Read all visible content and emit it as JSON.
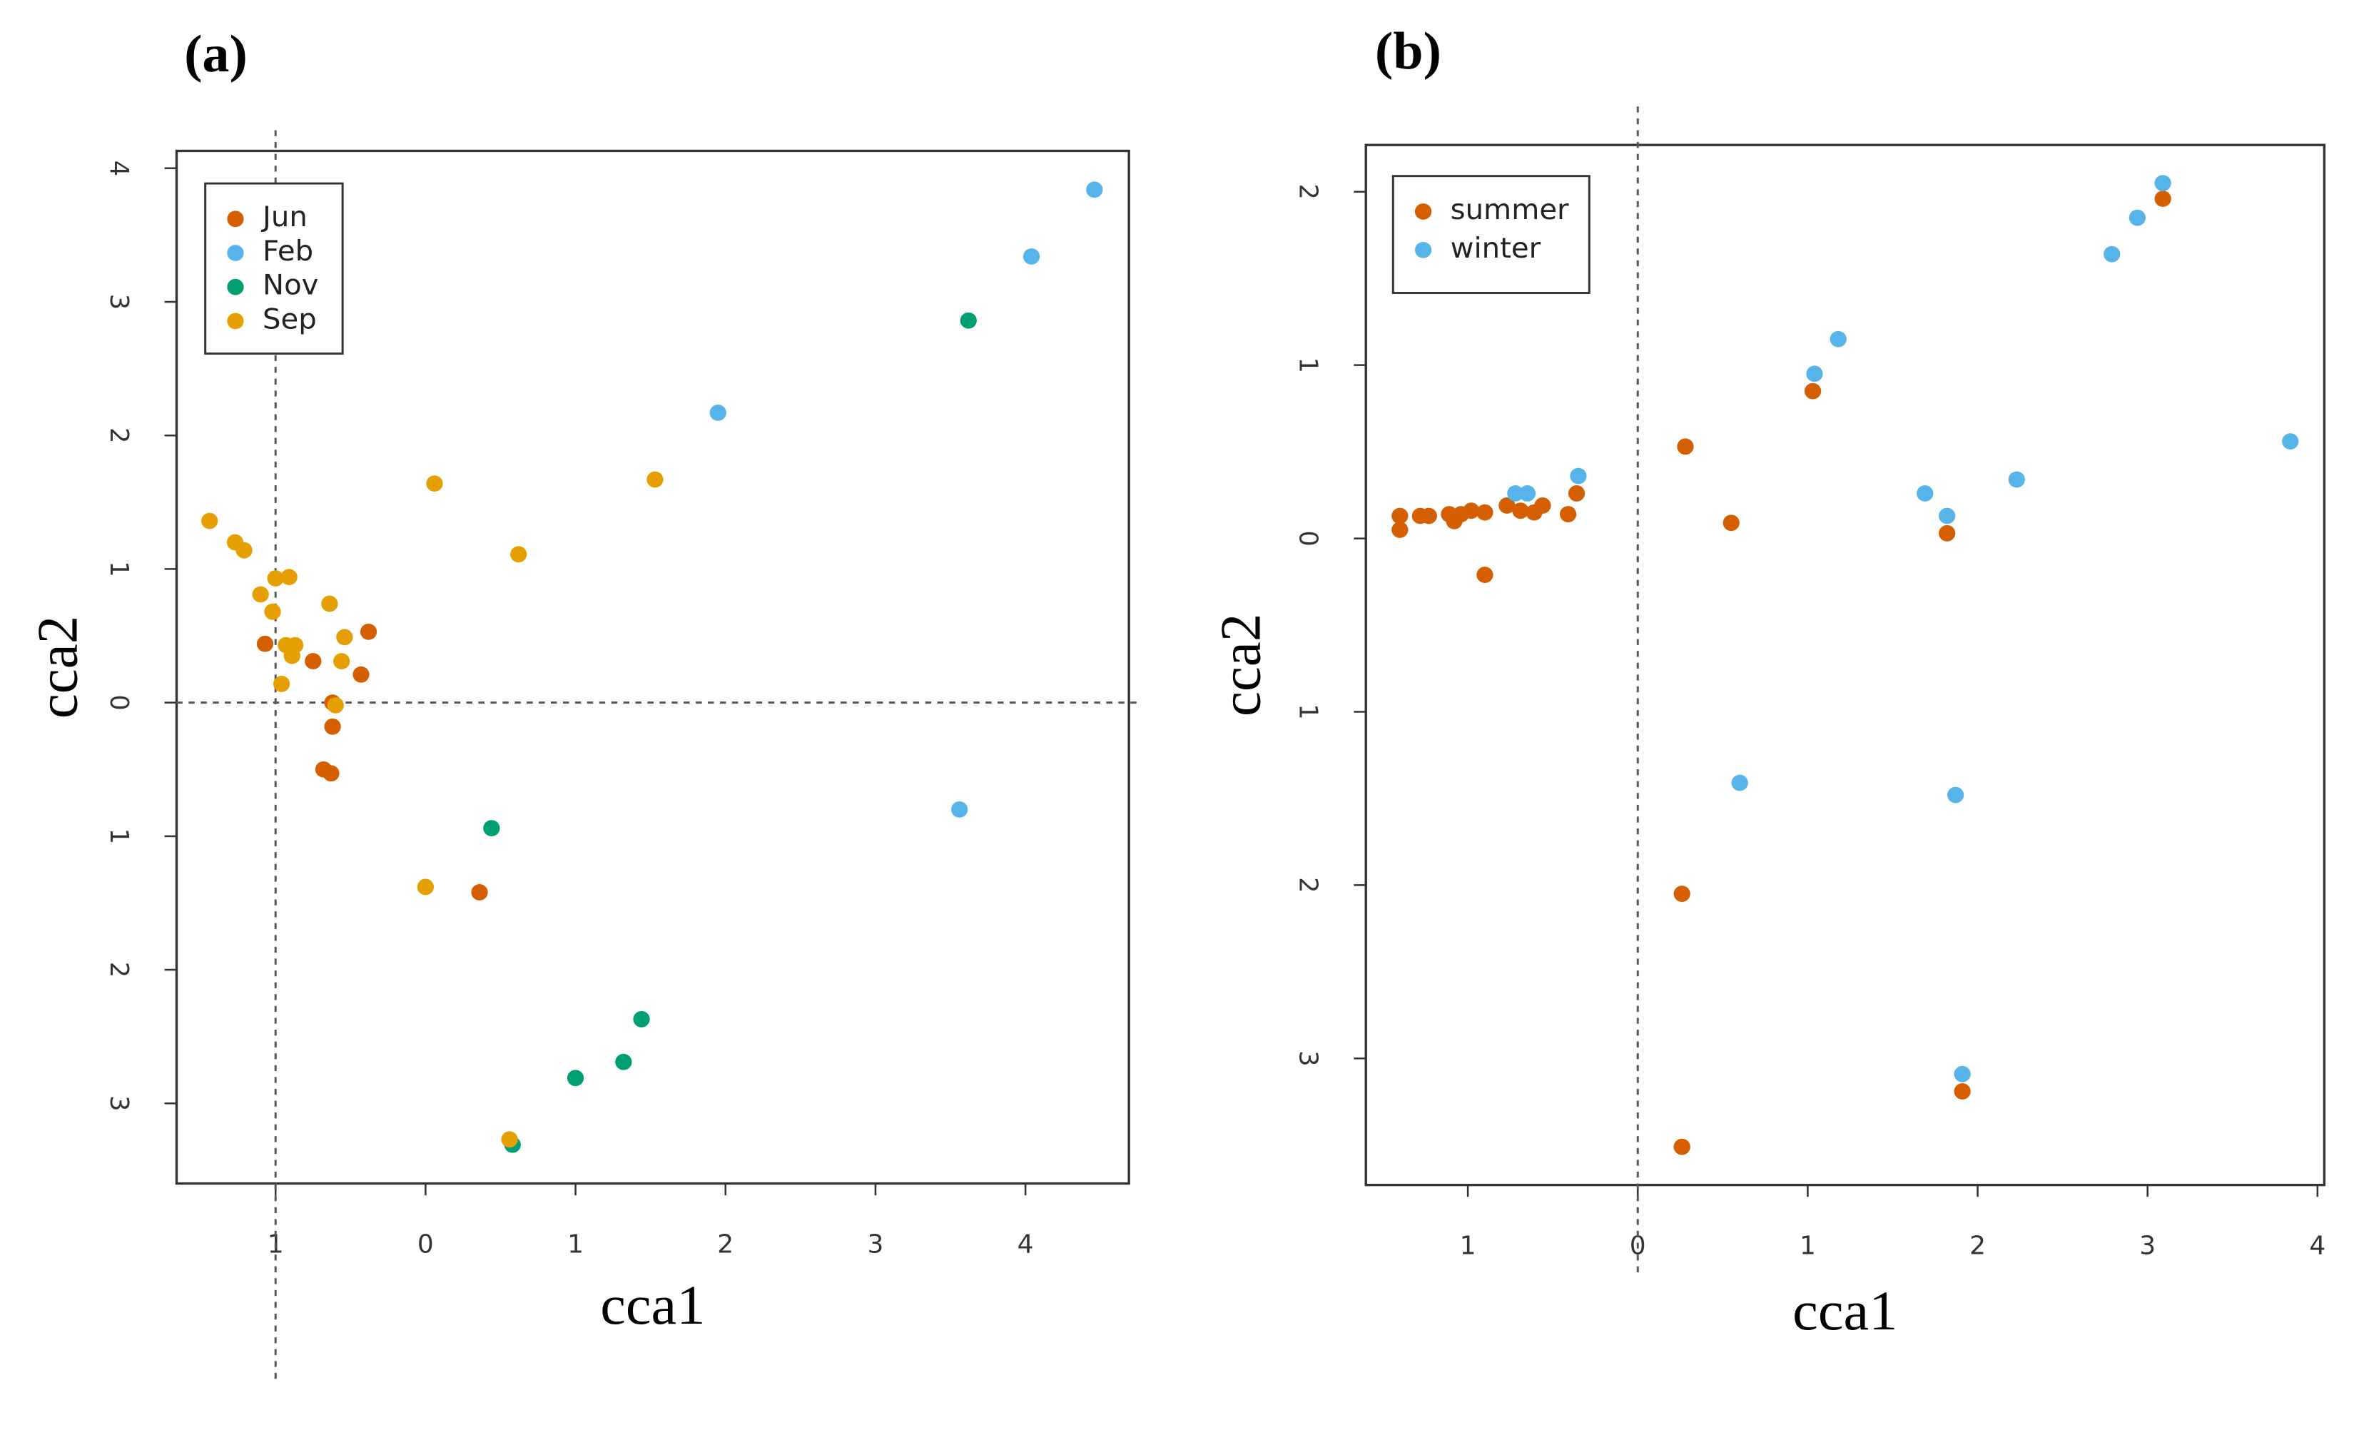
{
  "chart_data": [
    {
      "type": "scatter",
      "title": "(a)",
      "x_label": "cca1",
      "y_label": "cca2",
      "xlim": [
        -1.66,
        4.69
      ],
      "ylim": [
        -3.6,
        4.13
      ],
      "xticks": [
        {
          "value": -1,
          "label": "1"
        },
        0,
        1,
        2,
        3,
        4
      ],
      "yticks": [
        {
          "value": -3,
          "label": "3"
        },
        {
          "value": -2,
          "label": "2"
        },
        {
          "value": -1,
          "label": "1"
        },
        0,
        1,
        2,
        3,
        4
      ],
      "vlines": [
        -1
      ],
      "hlines": [
        0
      ],
      "legend": "upper left",
      "series": [
        {
          "name": "Jun",
          "color": "#d55e00",
          "x": [
            -1.07,
            -0.75,
            -0.38,
            -0.43,
            -0.62,
            -0.62,
            -0.68,
            -0.63,
            0.36
          ],
          "values": [
            0.44,
            0.31,
            0.53,
            0.21,
            0.0,
            -0.18,
            -0.5,
            -0.53,
            -1.42
          ]
        },
        {
          "name": "Feb",
          "color": "#56b4e9",
          "x": [
            4.46,
            4.04,
            1.95,
            3.56
          ],
          "values": [
            3.84,
            3.34,
            2.17,
            -0.8
          ]
        },
        {
          "name": "Nov",
          "color": "#009e73",
          "x": [
            3.62,
            0.44,
            1.44,
            1.32,
            1.0,
            0.58
          ],
          "values": [
            2.86,
            -0.94,
            -2.37,
            -2.69,
            -2.81,
            -3.31
          ]
        },
        {
          "name": "Sep",
          "color": "#e69f00",
          "x": [
            -1.44,
            -1.27,
            -1.21,
            0.06,
            1.53,
            0.62,
            -1.0,
            -0.91,
            -1.1,
            -1.02,
            -0.64,
            -0.93,
            -0.87,
            -0.54,
            -0.89,
            -0.56,
            -0.96,
            -0.6,
            0.0,
            0.56
          ],
          "values": [
            1.36,
            1.2,
            1.14,
            1.64,
            1.67,
            1.11,
            0.93,
            0.94,
            0.81,
            0.68,
            0.74,
            0.43,
            0.43,
            0.49,
            0.35,
            0.31,
            0.14,
            -0.02,
            -1.38,
            -3.27
          ]
        }
      ]
    },
    {
      "type": "scatter",
      "title": "(b)",
      "x_label": "cca1",
      "y_label": "cca2",
      "xlim": [
        -1.6,
        4.04
      ],
      "ylim": [
        -3.73,
        2.27
      ],
      "xticks": [
        {
          "value": -1,
          "label": "1"
        },
        0,
        1,
        2,
        3,
        4
      ],
      "yticks": [
        {
          "value": -3,
          "label": "3"
        },
        {
          "value": -2,
          "label": "2"
        },
        {
          "value": -1,
          "label": "1"
        },
        0,
        1,
        2
      ],
      "vlines": [
        0
      ],
      "hlines": [],
      "legend": "upper left",
      "series": [
        {
          "name": "summer",
          "color": "#d55e00",
          "x": [
            3.09,
            1.03,
            0.28,
            0.55,
            1.82,
            -0.36,
            -0.41,
            -0.56,
            -0.61,
            -0.69,
            -0.77,
            -0.9,
            -0.98,
            -1.04,
            -1.08,
            -1.11,
            -1.23,
            -1.28,
            -1.4,
            -1.4,
            -0.9,
            0.26,
            1.91,
            0.26
          ],
          "values": [
            1.96,
            0.85,
            0.53,
            0.09,
            0.03,
            0.26,
            0.14,
            0.19,
            0.15,
            0.16,
            0.19,
            0.15,
            0.16,
            0.14,
            0.1,
            0.14,
            0.13,
            0.13,
            0.13,
            0.05,
            -0.21,
            -2.05,
            -3.19,
            -3.51
          ]
        },
        {
          "name": "winter",
          "color": "#56b4e9",
          "x": [
            3.09,
            2.94,
            2.79,
            1.18,
            1.04,
            3.84,
            2.23,
            1.69,
            1.82,
            -0.35,
            -0.72,
            -0.65,
            0.6,
            1.87,
            1.91
          ],
          "values": [
            2.05,
            1.85,
            1.64,
            1.15,
            0.95,
            0.56,
            0.34,
            0.26,
            0.13,
            0.36,
            0.26,
            0.26,
            -1.41,
            -1.48,
            -3.09
          ]
        }
      ]
    }
  ]
}
